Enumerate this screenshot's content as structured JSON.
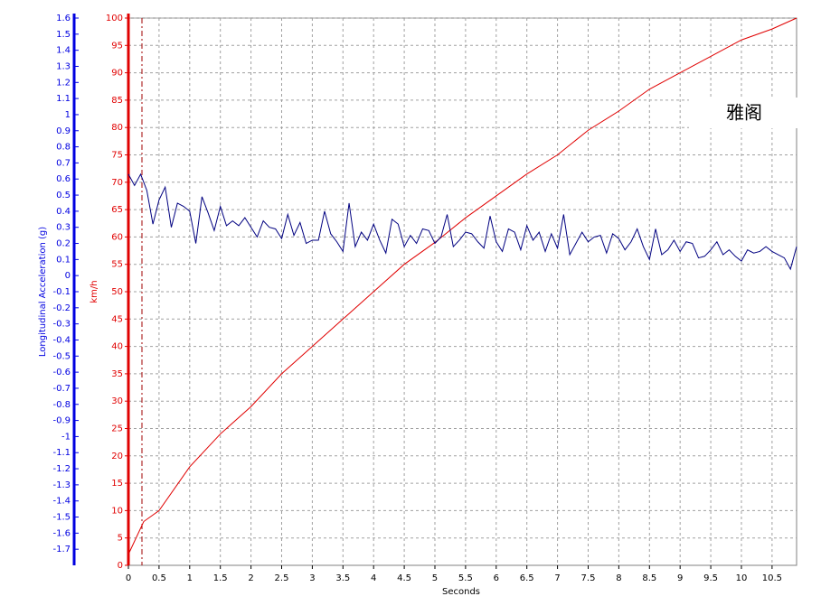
{
  "chart_data": {
    "type": "line",
    "xlabel": "Seconds",
    "ylabel": "km/h",
    "y2label": "Longitudinal Acceleration (g)",
    "watermark": "雅阁",
    "xlim": [
      0,
      10.9
    ],
    "xticks": [
      0,
      0.5,
      1,
      1.5,
      2,
      2.5,
      3,
      3.5,
      4,
      4.5,
      5,
      5.5,
      6,
      6.5,
      7,
      7.5,
      8,
      8.5,
      9,
      9.5,
      10,
      10.5
    ],
    "ylim": [
      0,
      100
    ],
    "yticks": [
      0,
      5,
      10,
      15,
      20,
      25,
      30,
      35,
      40,
      45,
      50,
      55,
      60,
      65,
      70,
      75,
      80,
      85,
      90,
      95,
      100
    ],
    "y2lim": [
      -1.8,
      1.6
    ],
    "y2ticks": [
      1.6,
      1.5,
      1.4,
      1.3,
      1.2,
      1.1,
      1,
      0.9,
      0.8,
      0.7,
      0.6,
      0.5,
      0.4,
      0.3,
      0.2,
      0.1,
      0,
      -0.1,
      -0.2,
      -0.3,
      -0.4,
      -0.5,
      -0.6,
      -0.7,
      -0.8,
      -0.9,
      -1,
      -1.1,
      -1.2,
      -1.3,
      -1.4,
      -1.5,
      -1.6,
      -1.7
    ],
    "grid": true,
    "series": [
      {
        "color": "#e00000",
        "axis": "y",
        "x": [
          0,
          0.25,
          0.5,
          1,
          1.5,
          2,
          2.5,
          3,
          3.5,
          4,
          4.5,
          5,
          5.5,
          6,
          6.5,
          7,
          7.5,
          8,
          8.5,
          9,
          9.5,
          10,
          10.5,
          10.9
        ],
        "values": [
          2,
          8,
          10,
          18,
          24,
          29,
          35,
          40,
          45,
          50,
          55,
          59,
          63.5,
          67.5,
          71.5,
          75,
          79.5,
          83,
          87,
          90,
          93,
          96,
          98,
          100
        ]
      },
      {
        "color": "#000080",
        "axis": "y2",
        "x": [
          0,
          0.1,
          0.2,
          0.3,
          0.4,
          0.5,
          0.6,
          0.7,
          0.8,
          0.9,
          1,
          1.1,
          1.2,
          1.3,
          1.4,
          1.5,
          1.6,
          1.7,
          1.8,
          1.9,
          2,
          2.1,
          2.2,
          2.3,
          2.4,
          2.5,
          2.6,
          2.7,
          2.8,
          2.9,
          3,
          3.1,
          3.2,
          3.3,
          3.4,
          3.5,
          3.6,
          3.7,
          3.8,
          3.9,
          4,
          4.1,
          4.2,
          4.3,
          4.4,
          4.5,
          4.6,
          4.7,
          4.8,
          4.9,
          5,
          5.1,
          5.2,
          5.3,
          5.4,
          5.5,
          5.6,
          5.7,
          5.8,
          5.9,
          6,
          6.1,
          6.2,
          6.3,
          6.4,
          6.5,
          6.6,
          6.7,
          6.8,
          6.9,
          7,
          7.1,
          7.2,
          7.3,
          7.4,
          7.5,
          7.6,
          7.7,
          7.8,
          7.9,
          8,
          8.1,
          8.2,
          8.3,
          8.4,
          8.5,
          8.6,
          8.7,
          8.8,
          8.9,
          9,
          9.1,
          9.2,
          9.3,
          9.4,
          9.5,
          9.6,
          9.7,
          9.8,
          9.9,
          10,
          10.1,
          10.2,
          10.3,
          10.4,
          10.5,
          10.6,
          10.7,
          10.8,
          10.9
        ],
        "values": [
          0.63,
          0.56,
          0.63,
          0.53,
          0.32,
          0.47,
          0.55,
          0.3,
          0.45,
          0.43,
          0.4,
          0.2,
          0.49,
          0.39,
          0.28,
          0.43,
          0.31,
          0.34,
          0.31,
          0.36,
          0.3,
          0.24,
          0.34,
          0.3,
          0.29,
          0.23,
          0.38,
          0.25,
          0.33,
          0.2,
          0.22,
          0.22,
          0.4,
          0.26,
          0.21,
          0.15,
          0.45,
          0.18,
          0.27,
          0.22,
          0.32,
          0.22,
          0.14,
          0.35,
          0.32,
          0.18,
          0.25,
          0.2,
          0.29,
          0.28,
          0.2,
          0.24,
          0.38,
          0.18,
          0.22,
          0.27,
          0.26,
          0.21,
          0.17,
          0.37,
          0.21,
          0.15,
          0.29,
          0.27,
          0.16,
          0.31,
          0.22,
          0.27,
          0.15,
          0.26,
          0.17,
          0.38,
          0.13,
          0.2,
          0.27,
          0.21,
          0.24,
          0.25,
          0.14,
          0.26,
          0.23,
          0.16,
          0.21,
          0.29,
          0.18,
          0.1,
          0.29,
          0.13,
          0.16,
          0.22,
          0.15,
          0.21,
          0.2,
          0.11,
          0.12,
          0.16,
          0.21,
          0.13,
          0.16,
          0.12,
          0.09,
          0.16,
          0.14,
          0.15,
          0.18,
          0.15,
          0.13,
          0.11,
          0.04,
          0.18
        ]
      }
    ]
  }
}
